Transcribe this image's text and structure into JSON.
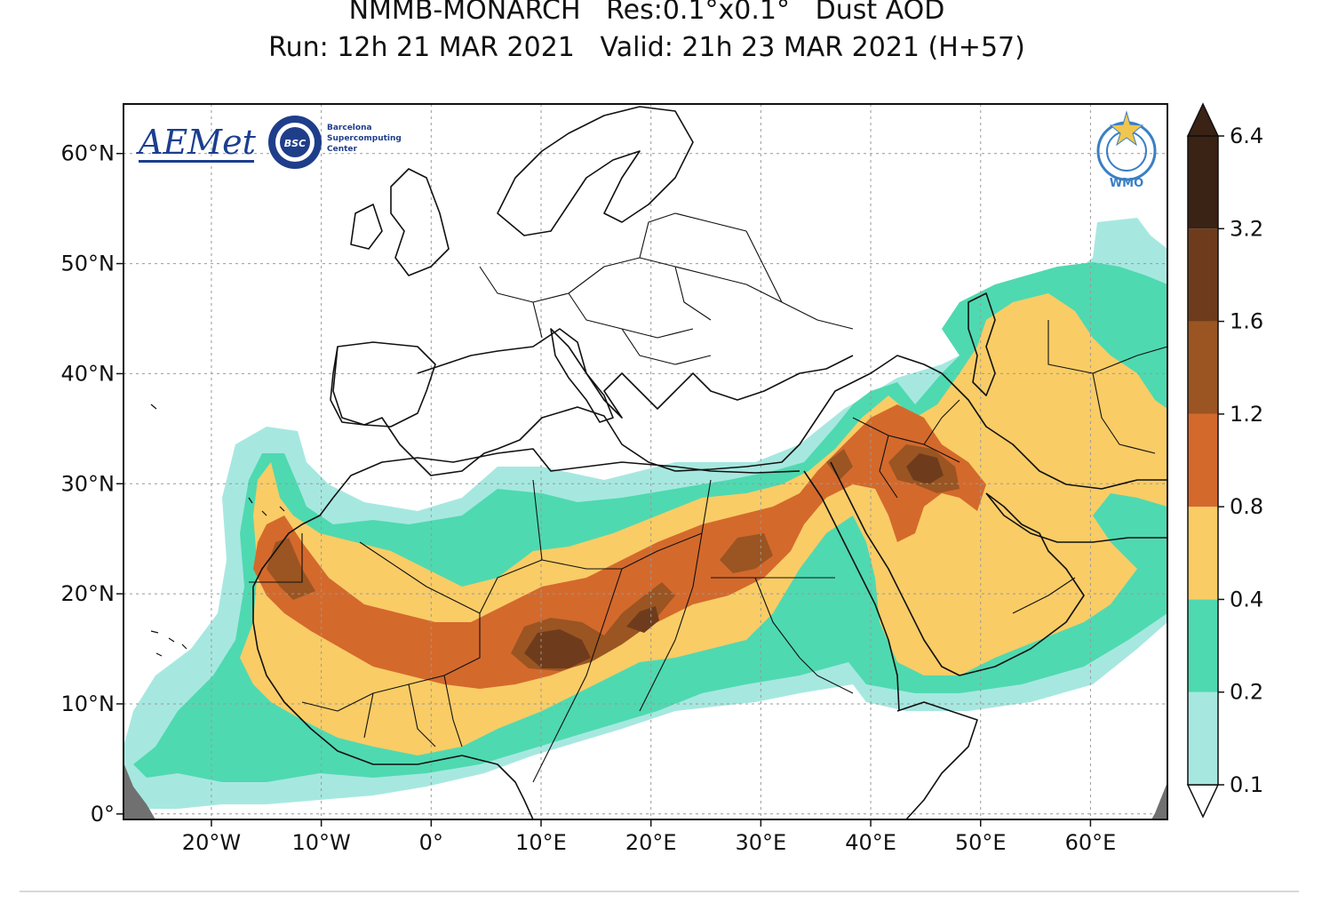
{
  "header": {
    "line1": "NMMB-MONARCH   Res:0.1°x0.1°   Dust AOD",
    "line2": "Run: 12h 21 MAR 2021   Valid: 21h 23 MAR 2021 (H+57)"
  },
  "map": {
    "lon_ticks": [
      {
        "value": -20,
        "label": "20°W"
      },
      {
        "value": -10,
        "label": "10°W"
      },
      {
        "value": 0,
        "label": "0°"
      },
      {
        "value": 10,
        "label": "10°E"
      },
      {
        "value": 20,
        "label": "20°E"
      },
      {
        "value": 30,
        "label": "30°E"
      },
      {
        "value": 40,
        "label": "40°E"
      },
      {
        "value": 50,
        "label": "50°E"
      },
      {
        "value": 60,
        "label": "60°E"
      }
    ],
    "lat_ticks": [
      {
        "value": 0,
        "label": "0°"
      },
      {
        "value": 10,
        "label": "10°N"
      },
      {
        "value": 20,
        "label": "20°N"
      },
      {
        "value": 30,
        "label": "30°N"
      },
      {
        "value": 40,
        "label": "40°N"
      },
      {
        "value": 50,
        "label": "50°N"
      },
      {
        "value": 60,
        "label": "60°N"
      }
    ],
    "lon_range": [
      -28,
      67
    ],
    "lat_range": [
      -0.5,
      64.5
    ],
    "grid": true
  },
  "logos": {
    "aemet": "AEMet",
    "bsc_badge": "BSC",
    "bsc_line1": "Barcelona",
    "bsc_line2": "Supercomputing",
    "bsc_line3": "Center",
    "wmo": "WMO"
  },
  "legend": {
    "levels": [
      "0.1",
      "0.2",
      "0.4",
      "0.8",
      "1.2",
      "1.6",
      "3.2",
      "6.4"
    ],
    "colors": [
      "#ffffff",
      "#a6e8e0",
      "#4fd9b0",
      "#f9cc66",
      "#d4692c",
      "#9a5522",
      "#6e3c1c",
      "#3a2214"
    ]
  }
}
